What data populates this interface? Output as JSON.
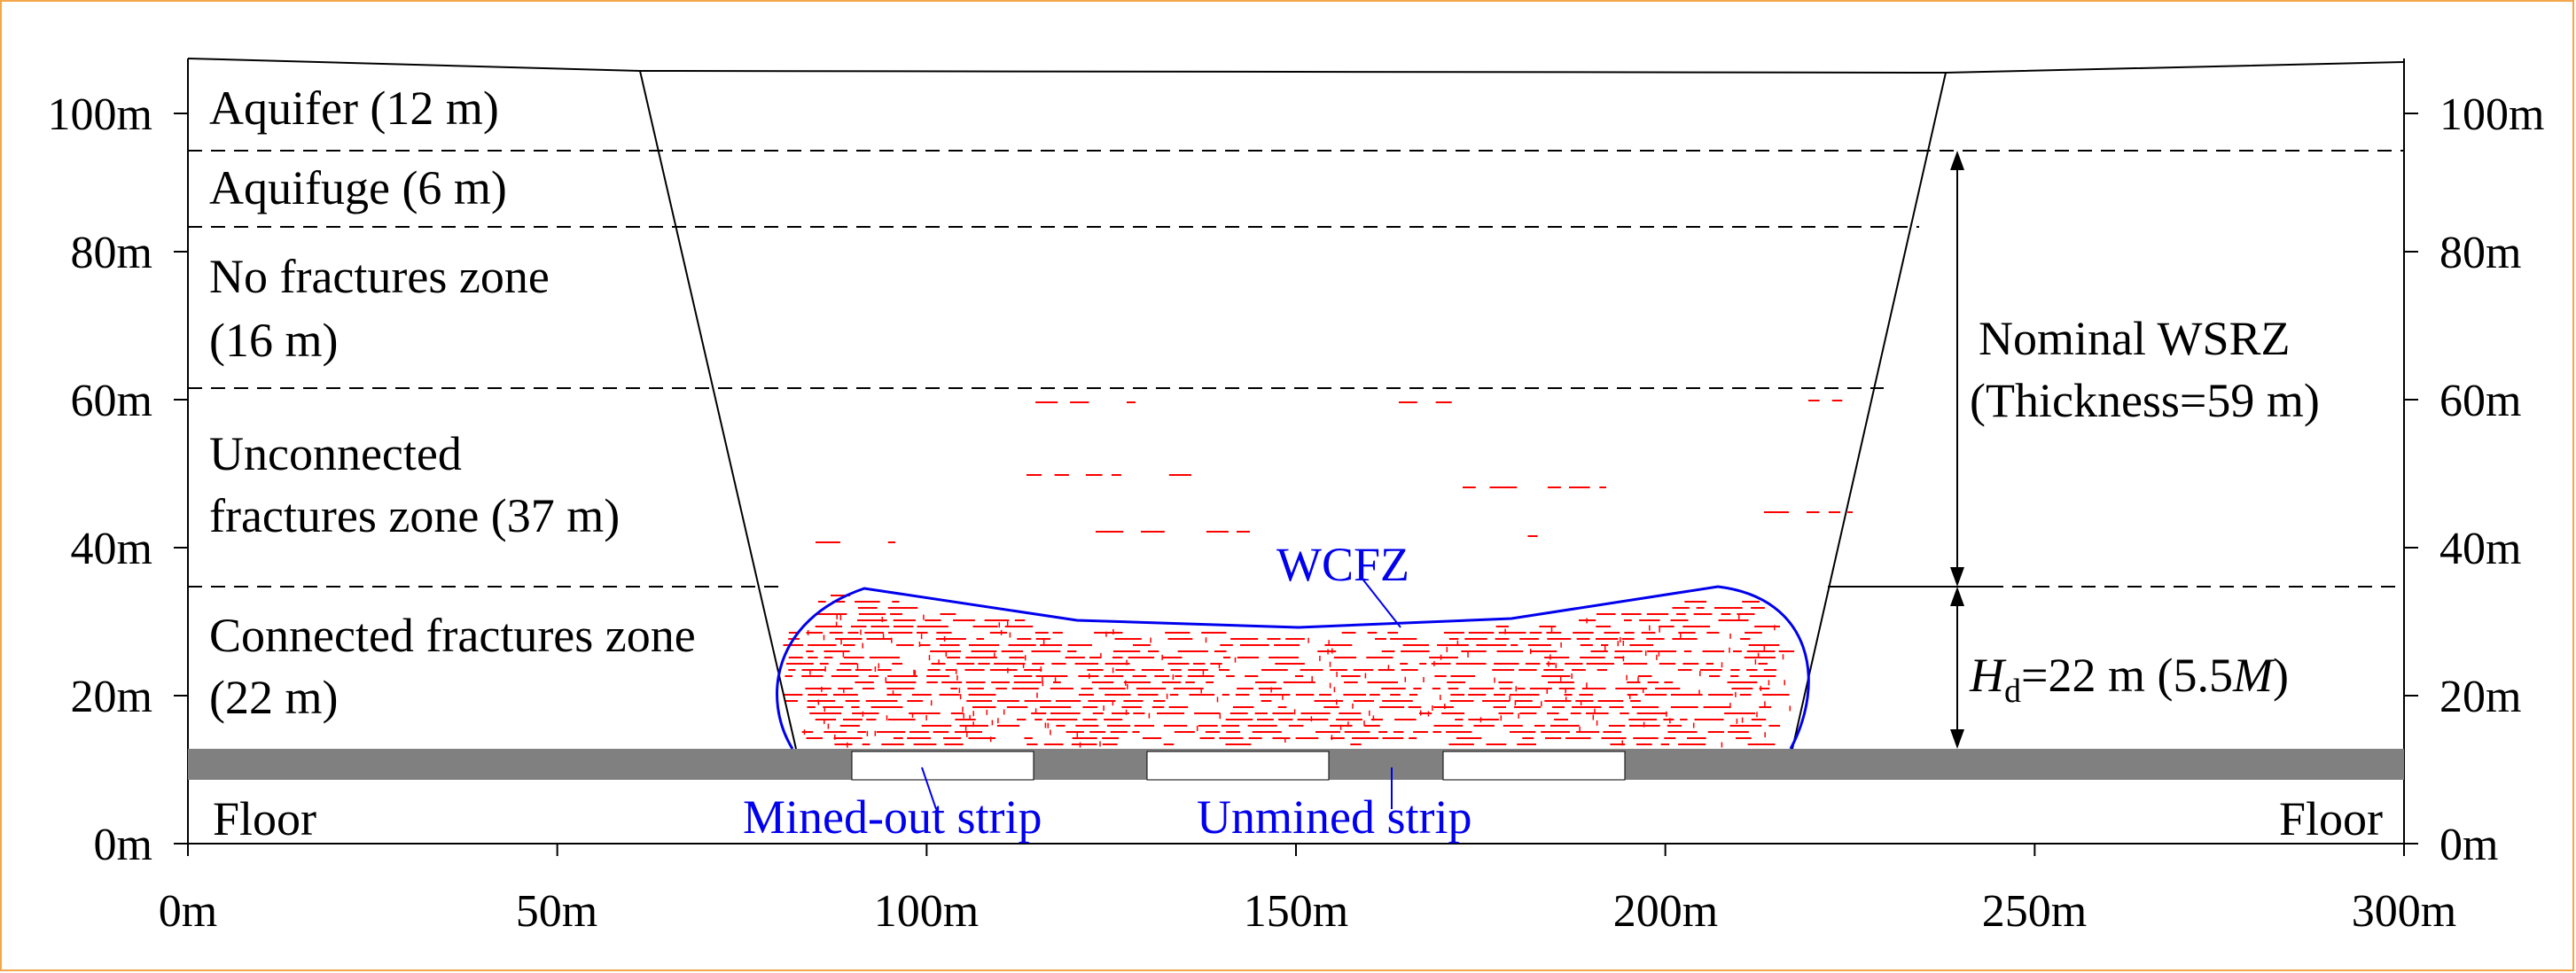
{
  "colors": {
    "frame": "#f3a64a",
    "fracture": "#ff0000",
    "wcfz_outline": "#0000ee",
    "coal_seam": "#808080",
    "label_blue": "#0000ee"
  },
  "axes": {
    "x_ticks": [
      "0m",
      "50m",
      "100m",
      "150m",
      "200m",
      "250m",
      "300m"
    ],
    "y_ticks_left": [
      "0m",
      "20m",
      "40m",
      "60m",
      "80m",
      "100m"
    ],
    "y_ticks_right": [
      "0m",
      "20m",
      "40m",
      "60m",
      "80m",
      "100m"
    ],
    "x_range_m": [
      0,
      300
    ],
    "y_range_m": [
      0,
      105
    ]
  },
  "zones": {
    "aquifer": "Aquifer (12 m)",
    "aquifuge": "Aquifuge (6 m)",
    "no_fractures_1": "No fractures zone",
    "no_fractures_2": "(16 m)",
    "unconnected_1": "Unconnected",
    "unconnected_2": "fractures zone (37 m)",
    "connected_1": "Connected fractures zone",
    "connected_2": "(22 m)",
    "floor_left": "Floor",
    "floor_right": "Floor"
  },
  "labels": {
    "wcfz": "WCFZ",
    "mined_out": "Mined-out strip",
    "unmined": "Unmined strip",
    "nominal_1": "Nominal WSRZ",
    "nominal_2": "(Thickness=59 m)",
    "hd_symbol": "H",
    "hd_sub": "d",
    "hd_value": "=22 m (5.5",
    "hd_m": "M",
    "hd_close": ")"
  }
}
